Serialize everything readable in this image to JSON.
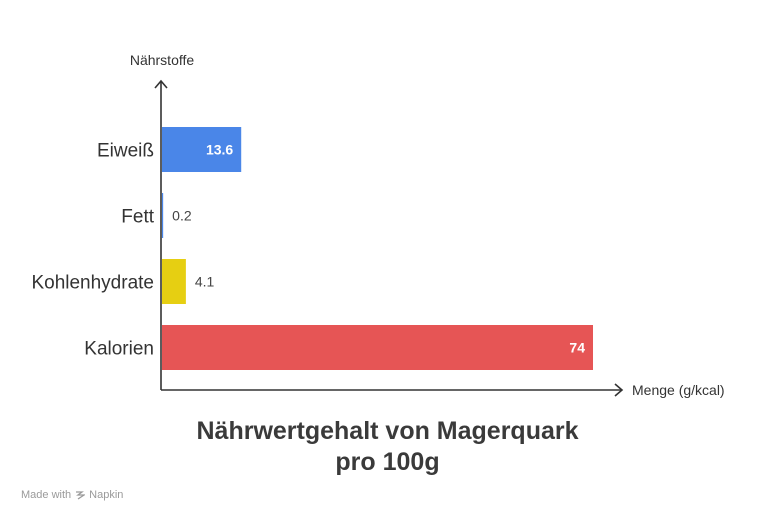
{
  "chart_data": {
    "type": "bar",
    "orientation": "horizontal",
    "title_line1": "Nährwertgehalt von Magerquark",
    "title_line2": "pro 100g",
    "xlabel": "Menge (g/kcal)",
    "ylabel": "Nährstoffe",
    "categories": [
      "Eiweiß",
      "Fett",
      "Kohlenhydrate",
      "Kalorien"
    ],
    "values": [
      13.6,
      0.2,
      4.1,
      74
    ],
    "value_labels": [
      "13.6",
      "0.2",
      "4.1",
      "74"
    ],
    "colors": [
      "#4a86e8",
      "#4a86e8",
      "#e6cf12",
      "#e65555"
    ],
    "xlim": [
      0,
      74
    ],
    "grid": false,
    "legend": "none"
  },
  "footer": {
    "made_with": "Made with",
    "brand": "Napkin"
  }
}
